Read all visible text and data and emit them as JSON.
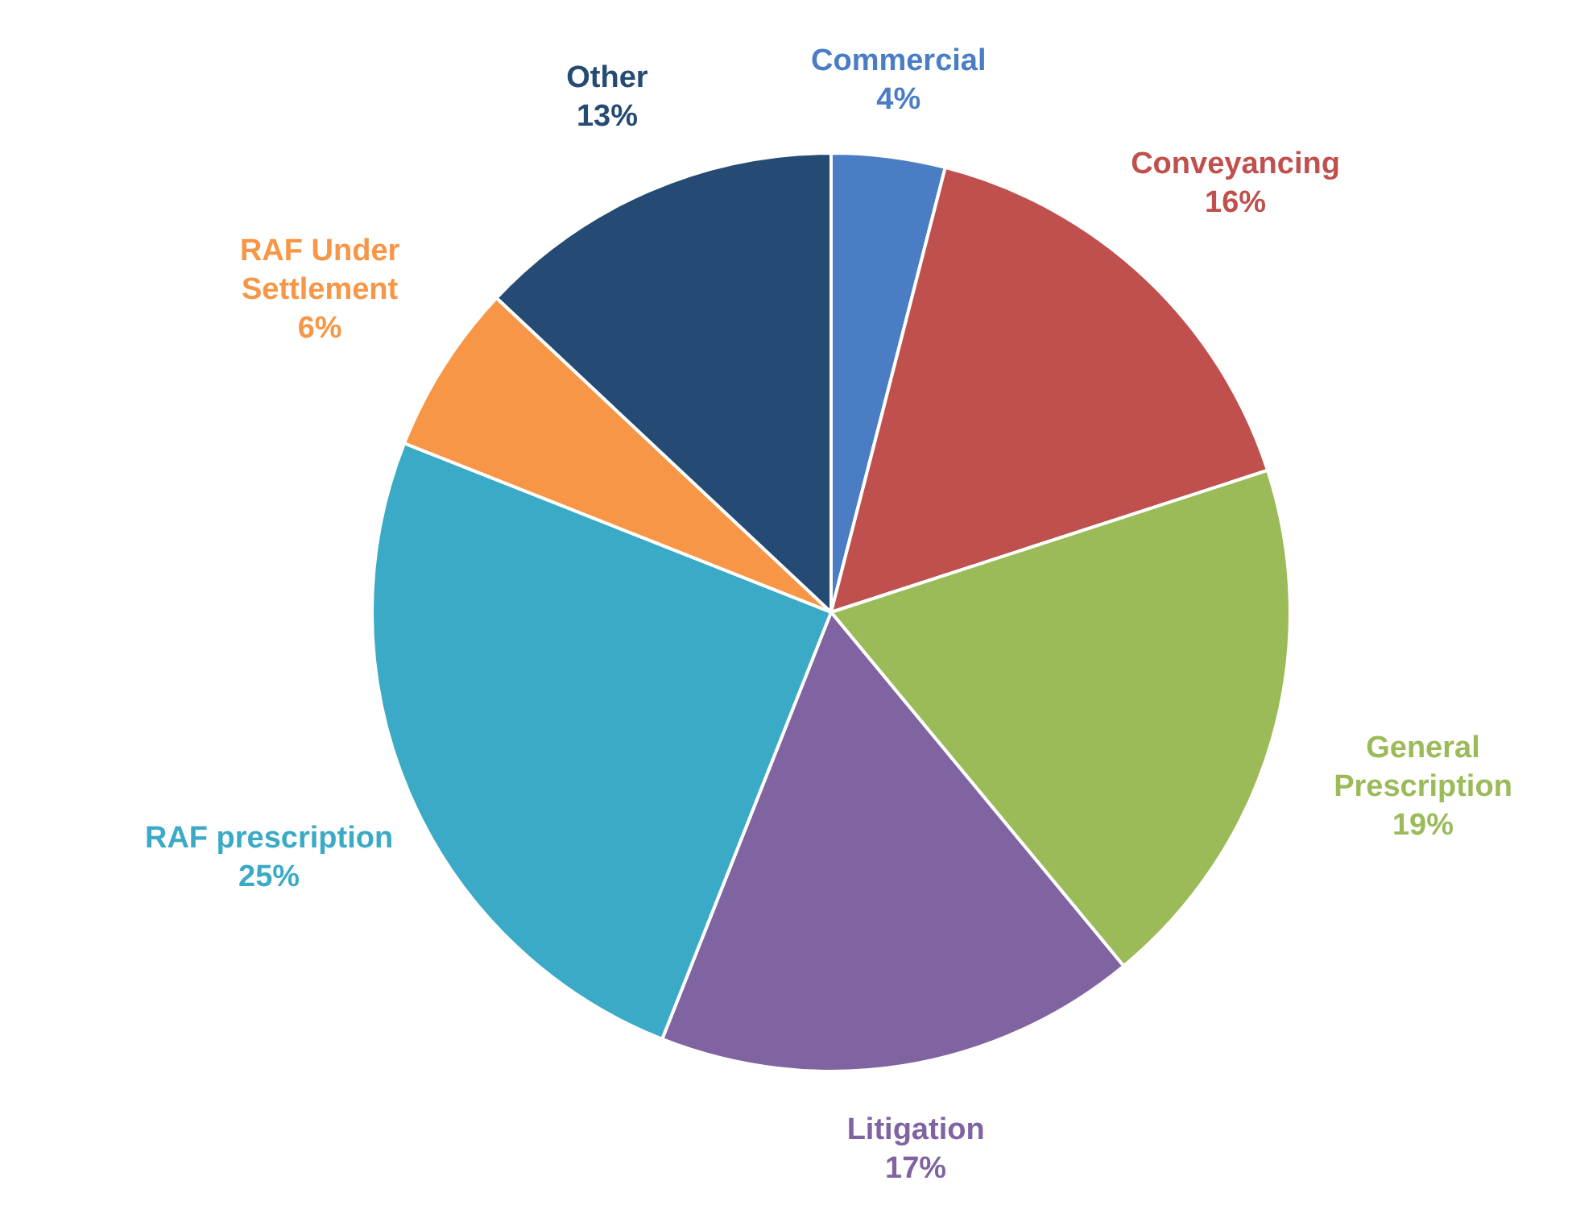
{
  "chart_data": {
    "type": "pie",
    "categories": [
      "Commercial",
      "Conveyancing",
      "General Prescription",
      "Litigation",
      "RAF prescription",
      "RAF Under Settlement",
      "Other"
    ],
    "values": [
      4,
      16,
      19,
      17,
      25,
      6,
      13
    ],
    "value_labels": [
      "4%",
      "16%",
      "19%",
      "17%",
      "25%",
      "6%",
      "13%"
    ],
    "colors": [
      "#4a7dc4",
      "#c0504d",
      "#9bbb59",
      "#8064a2",
      "#3aaac6",
      "#f79646",
      "#254a74"
    ]
  }
}
